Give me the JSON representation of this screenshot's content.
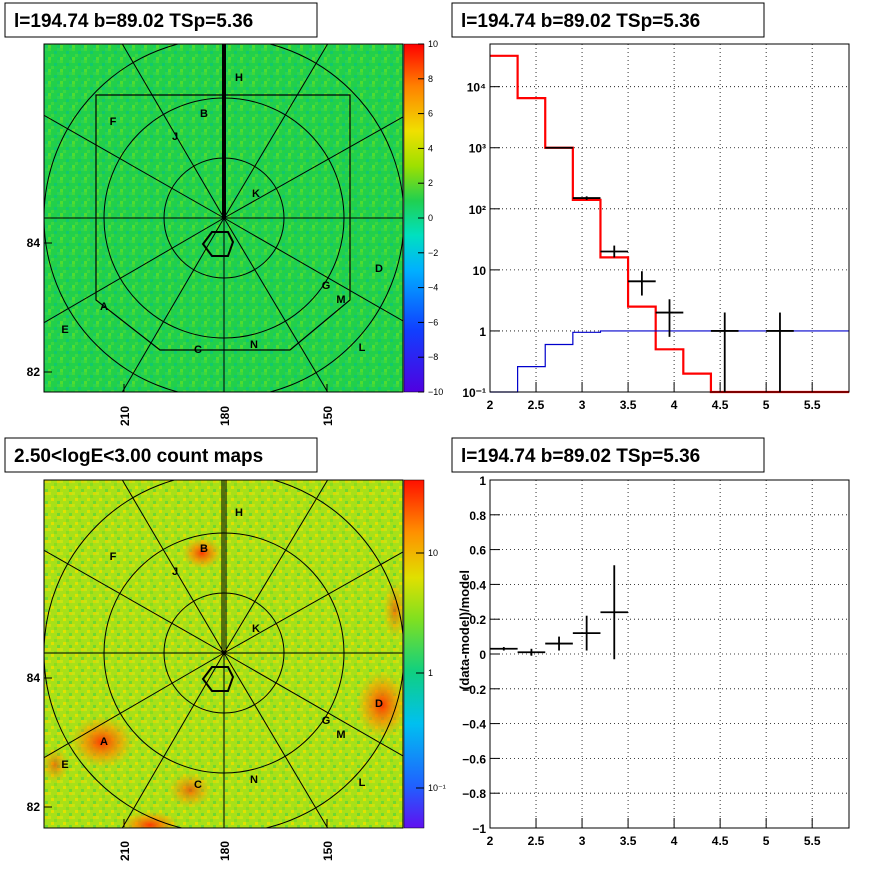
{
  "panels": {
    "tl_title": "l=194.74 b=89.02 TSp=5.36",
    "tr_title": "l=194.74 b=89.02 TSp=5.36",
    "bl_title": "2.50<logE<3.00 count maps",
    "br_title": "l=194.74 b=89.02 TSp=5.36"
  },
  "maps": {
    "x_ticks": [
      "210",
      "180",
      "150"
    ],
    "y_ticks": [
      "84",
      "82"
    ],
    "source_labels": [
      "H",
      "B",
      "J",
      "F",
      "K",
      "D",
      "G",
      "M",
      "A",
      "E",
      "C",
      "N",
      "L"
    ],
    "top_colorbar_ticks": [
      "10",
      "8",
      "6",
      "4",
      "2",
      "0",
      "−2",
      "−4",
      "−6",
      "−8",
      "−10"
    ],
    "bottom_colorbar_ticks": [
      "10",
      "1",
      "10⁻¹"
    ],
    "colors": {
      "background": "#22d04a",
      "accent": "#000000"
    }
  },
  "chart_data": [
    {
      "type": "line",
      "panel": "spectrum",
      "title": "l=194.74 b=89.02 TSp=5.36",
      "xlabel": "",
      "ylabel": "",
      "xlim": [
        2,
        5.9
      ],
      "ylim": [
        0.1,
        50000
      ],
      "yscale": "log",
      "x_ticks": [
        "2",
        "2.5",
        "3",
        "3.5",
        "4",
        "4.5",
        "5",
        "5.5"
      ],
      "y_ticks": [
        "10⁻¹",
        "1",
        "10",
        "10²",
        "10³",
        "10⁴"
      ],
      "grid": true,
      "series": [
        {
          "color": "#ff0000",
          "bin_edges": [
            2.0,
            2.3,
            2.6,
            2.9,
            3.2,
            3.5,
            3.8,
            4.1,
            4.4,
            4.7,
            5.0,
            5.3,
            5.6,
            5.9
          ],
          "values": [
            32000,
            6500,
            1000,
            140,
            16,
            2.5,
            0.5,
            0.2,
            0.1,
            0.1,
            0.1,
            0.1,
            0.1
          ]
        },
        {
          "color": "#0000cc",
          "bin_edges": [
            2.0,
            2.3,
            2.6,
            2.9,
            3.2,
            3.5,
            3.8,
            4.1,
            4.4,
            4.7,
            5.0,
            5.3,
            5.6,
            5.9
          ],
          "values": [
            0.08,
            0.26,
            0.6,
            0.95,
            1.0,
            1.0,
            1.0,
            1.0,
            1.0,
            1.0,
            1.0,
            1.0,
            1.0
          ]
        },
        {
          "color": "#000000",
          "points": [
            {
              "x": 2.75,
              "y": 1000,
              "xerr": 0.15,
              "ylo": 1000,
              "yhi": 1000
            },
            {
              "x": 3.05,
              "y": 150,
              "xerr": 0.15,
              "ylo": 140,
              "yhi": 160
            },
            {
              "x": 3.35,
              "y": 20,
              "xerr": 0.15,
              "ylo": 16,
              "yhi": 25
            },
            {
              "x": 3.65,
              "y": 6.5,
              "xerr": 0.15,
              "ylo": 3.8,
              "yhi": 9.5
            },
            {
              "x": 3.95,
              "y": 2,
              "xerr": 0.15,
              "ylo": 0.8,
              "yhi": 3.3
            },
            {
              "x": 4.55,
              "y": 1,
              "xerr": 0.15,
              "ylo": 0.1,
              "yhi": 2
            },
            {
              "x": 5.15,
              "y": 1,
              "xerr": 0.15,
              "ylo": 0.1,
              "yhi": 2
            }
          ]
        }
      ]
    },
    {
      "type": "scatter",
      "panel": "residuals",
      "title": "l=194.74 b=89.02 TSp=5.36",
      "xlabel": "",
      "ylabel": "(data-model)/model",
      "xlim": [
        2,
        5.9
      ],
      "ylim": [
        -1,
        1
      ],
      "x_ticks": [
        "2",
        "2.5",
        "3",
        "3.5",
        "4",
        "4.5",
        "5",
        "5.5"
      ],
      "y_ticks": [
        "−1",
        "−0.8",
        "−0.6",
        "−0.4",
        "−0.2",
        "0",
        "0.2",
        "0.4",
        "0.6",
        "0.8",
        "1"
      ],
      "grid": true,
      "points": [
        {
          "x": 2.15,
          "y": 0.03,
          "xerr": 0.15,
          "yerr": 0.01
        },
        {
          "x": 2.45,
          "y": 0.01,
          "xerr": 0.15,
          "yerr": 0.02
        },
        {
          "x": 2.75,
          "y": 0.06,
          "xerr": 0.15,
          "yerr": 0.04
        },
        {
          "x": 3.05,
          "y": 0.12,
          "xerr": 0.15,
          "yerr": 0.1
        },
        {
          "x": 3.35,
          "y": 0.24,
          "xerr": 0.15,
          "yerr": 0.27
        }
      ]
    }
  ]
}
